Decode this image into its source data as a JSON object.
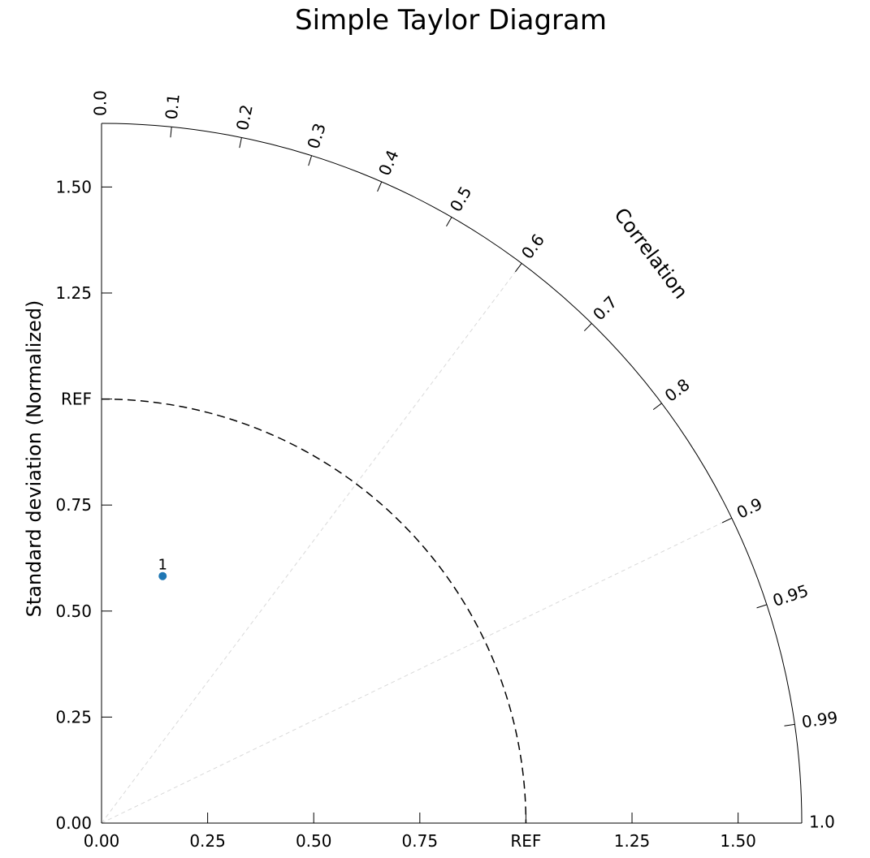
{
  "chart_data": {
    "type": "taylor-diagram",
    "title": "Simple Taylor Diagram",
    "std_axis_label": "Standard deviation (Normalized)",
    "correlation_axis_label": "Correlation",
    "reference_std": 1.0,
    "std_max": 1.65,
    "std_ticks": [
      0.0,
      0.25,
      0.5,
      0.75,
      1.0,
      1.25,
      1.5
    ],
    "std_tick_labels": [
      "0.00",
      "0.25",
      "0.50",
      "0.75",
      "REF",
      "1.25",
      "1.50"
    ],
    "correlation_ticks": [
      0.0,
      0.1,
      0.2,
      0.3,
      0.4,
      0.5,
      0.6,
      0.7,
      0.8,
      0.9,
      0.95,
      0.99,
      1.0
    ],
    "correlation_tick_labels": [
      "0.0",
      "0.1",
      "0.2",
      "0.3",
      "0.4",
      "0.5",
      "0.6",
      "0.7",
      "0.8",
      "0.9",
      "0.95",
      "0.99",
      "1.0"
    ],
    "correlation_guide_lines": [
      0.6,
      0.9
    ],
    "points": [
      {
        "label": "1",
        "std": 0.6,
        "correlation": 0.24,
        "color": "#1f77b4"
      }
    ],
    "colors": {
      "axes": "#000000",
      "reference_arc": "#000000",
      "guide_lines": "#d9d9d9",
      "point": "#1f77b4"
    }
  }
}
